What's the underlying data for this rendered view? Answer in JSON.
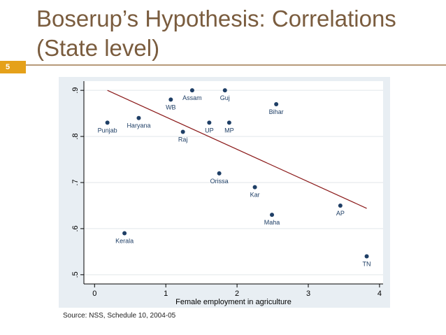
{
  "slide": {
    "title_line1": "Boserup’s Hypothesis: Correlations",
    "title_line2": "(State level)",
    "number": "5",
    "source": "Source:  NSS, Schedule 10, 2004-05"
  },
  "colors": {
    "title": "#7a5c3e",
    "accent": "#e5a11a",
    "rule": "#b79a7a",
    "plot_bg": "#e8eef3",
    "point": "#1f3f66",
    "fit_line": "#8b1a1a"
  },
  "chart_data": {
    "type": "scatter",
    "title": "",
    "xlabel": "Female employment in agriculture",
    "ylabel": "",
    "xlim": [
      -0.15,
      4.05
    ],
    "ylim": [
      0.48,
      0.92
    ],
    "xticks": [
      0,
      1,
      2,
      3,
      4
    ],
    "yticks": [
      0.5,
      0.6,
      0.7,
      0.8,
      0.9
    ],
    "xtick_labels": [
      "0",
      "1",
      "2",
      "3",
      "4"
    ],
    "ytick_labels": [
      ".5",
      ".6",
      ".7",
      ".8",
      ".9"
    ],
    "grid": "horizontal",
    "points": [
      {
        "label": "Punjab",
        "x": 0.18,
        "y": 0.83
      },
      {
        "label": "Haryana",
        "x": 0.62,
        "y": 0.84
      },
      {
        "label": "Kerala",
        "x": 0.42,
        "y": 0.59
      },
      {
        "label": "WB",
        "x": 1.07,
        "y": 0.88
      },
      {
        "label": "Assam",
        "x": 1.37,
        "y": 0.9
      },
      {
        "label": "Guj",
        "x": 1.83,
        "y": 0.9
      },
      {
        "label": "Raj",
        "x": 1.24,
        "y": 0.81
      },
      {
        "label": "UP",
        "x": 1.61,
        "y": 0.83
      },
      {
        "label": "MP",
        "x": 1.89,
        "y": 0.83
      },
      {
        "label": "Bihar",
        "x": 2.55,
        "y": 0.87
      },
      {
        "label": "Orissa",
        "x": 1.75,
        "y": 0.72
      },
      {
        "label": "Kar",
        "x": 2.25,
        "y": 0.69
      },
      {
        "label": "Maha",
        "x": 2.49,
        "y": 0.63
      },
      {
        "label": "AP",
        "x": 3.45,
        "y": 0.65
      },
      {
        "label": "TN",
        "x": 3.82,
        "y": 0.54
      }
    ],
    "fit_line": {
      "x": [
        0.18,
        3.82
      ],
      "y": [
        0.9,
        0.644
      ]
    }
  }
}
